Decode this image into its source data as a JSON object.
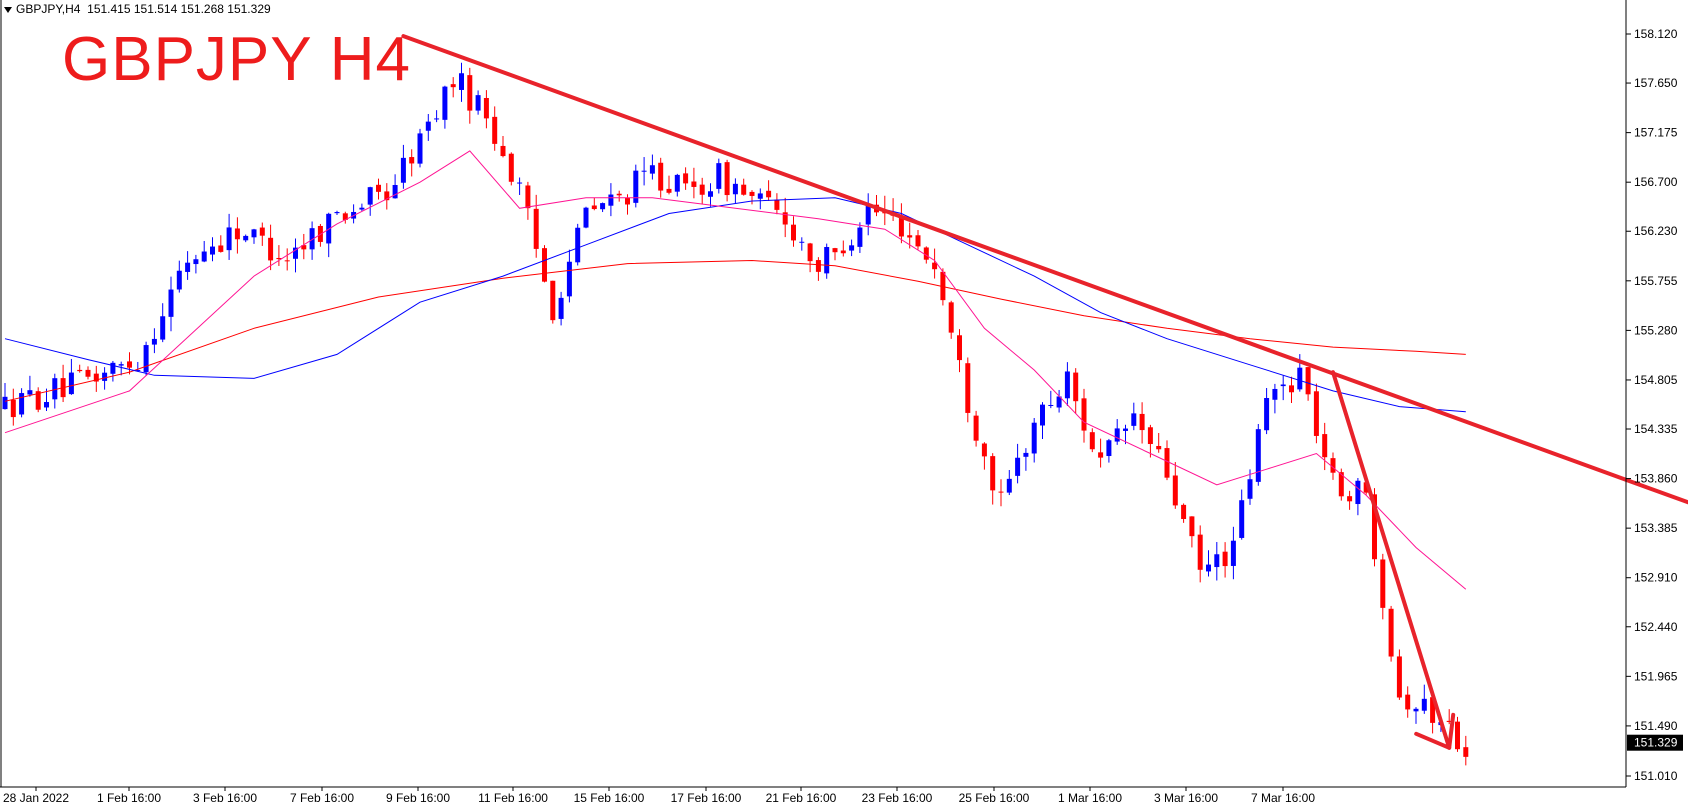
{
  "header": {
    "symbol_info": "GBPJPY,H4",
    "ohlc": "151.415 151.514 151.268 151.329",
    "big_title": "GBPJPY H4"
  },
  "colors": {
    "bull": "#0000ff",
    "bear": "#ff0000",
    "ma_fast": "#ff1493",
    "ma_mid": "#0000ff",
    "ma_slow": "#ff0000",
    "trendline": "#e8232b",
    "price_label_bg": "#000000"
  },
  "chart_data": {
    "type": "candlestick",
    "ylim": [
      150.9,
      158.2
    ],
    "y_ticks": [
      "158.120",
      "157.650",
      "157.175",
      "156.700",
      "156.230",
      "155.755",
      "155.280",
      "154.805",
      "154.335",
      "153.860",
      "153.385",
      "152.910",
      "152.440",
      "151.965",
      "151.490",
      "151.010"
    ],
    "x_ticks": [
      "28 Jan 2022",
      "1 Feb 16:00",
      "3 Feb 16:00",
      "7 Feb 16:00",
      "9 Feb 16:00",
      "11 Feb 16:00",
      "15 Feb 16:00",
      "17 Feb 16:00",
      "21 Feb 16:00",
      "23 Feb 16:00",
      "25 Feb 16:00",
      "1 Mar 16:00",
      "3 Mar 16:00",
      "7 Mar 16:00"
    ],
    "current_price": "151.329",
    "anchors": [
      [
        0,
        154.55
      ],
      [
        8,
        154.75
      ],
      [
        16,
        155.0
      ],
      [
        22,
        155.95
      ],
      [
        28,
        156.25
      ],
      [
        34,
        156.0
      ],
      [
        40,
        156.4
      ],
      [
        46,
        156.6
      ],
      [
        50,
        157.1
      ],
      [
        54,
        157.7
      ],
      [
        58,
        157.35
      ],
      [
        62,
        156.6
      ],
      [
        66,
        155.5
      ],
      [
        70,
        156.4
      ],
      [
        74,
        156.55
      ],
      [
        78,
        156.8
      ],
      [
        82,
        156.6
      ],
      [
        86,
        156.75
      ],
      [
        90,
        156.55
      ],
      [
        94,
        156.35
      ],
      [
        98,
        155.9
      ],
      [
        100,
        156.0
      ],
      [
        104,
        156.45
      ],
      [
        108,
        156.3
      ],
      [
        112,
        155.9
      ],
      [
        116,
        154.6
      ],
      [
        120,
        153.6
      ],
      [
        124,
        154.4
      ],
      [
        128,
        154.8
      ],
      [
        132,
        154.0
      ],
      [
        136,
        154.45
      ],
      [
        140,
        153.9
      ],
      [
        144,
        152.95
      ],
      [
        148,
        153.2
      ],
      [
        152,
        154.6
      ],
      [
        156,
        154.9
      ],
      [
        160,
        153.8
      ],
      [
        164,
        153.7
      ],
      [
        168,
        151.8
      ],
      [
        172,
        151.6
      ],
      [
        176,
        151.33
      ]
    ],
    "ma_fast": [
      [
        0,
        154.3
      ],
      [
        15,
        154.7
      ],
      [
        30,
        155.8
      ],
      [
        40,
        156.3
      ],
      [
        50,
        156.7
      ],
      [
        56,
        157.0
      ],
      [
        62,
        156.45
      ],
      [
        70,
        156.55
      ],
      [
        78,
        156.55
      ],
      [
        88,
        156.45
      ],
      [
        98,
        156.35
      ],
      [
        106,
        156.25
      ],
      [
        112,
        155.95
      ],
      [
        118,
        155.3
      ],
      [
        124,
        154.9
      ],
      [
        130,
        154.4
      ],
      [
        138,
        154.1
      ],
      [
        146,
        153.8
      ],
      [
        152,
        153.95
      ],
      [
        158,
        154.1
      ],
      [
        164,
        153.7
      ],
      [
        170,
        153.2
      ],
      [
        176,
        152.8
      ]
    ],
    "ma_mid": [
      [
        0,
        155.2
      ],
      [
        10,
        155.0
      ],
      [
        18,
        154.85
      ],
      [
        30,
        154.82
      ],
      [
        40,
        155.05
      ],
      [
        50,
        155.55
      ],
      [
        60,
        155.8
      ],
      [
        70,
        156.1
      ],
      [
        80,
        156.4
      ],
      [
        90,
        156.52
      ],
      [
        100,
        156.55
      ],
      [
        108,
        156.4
      ],
      [
        116,
        156.1
      ],
      [
        124,
        155.8
      ],
      [
        132,
        155.45
      ],
      [
        140,
        155.2
      ],
      [
        150,
        154.95
      ],
      [
        160,
        154.7
      ],
      [
        168,
        154.55
      ],
      [
        176,
        154.5
      ]
    ],
    "ma_slow": [
      [
        0,
        154.6
      ],
      [
        15,
        154.88
      ],
      [
        30,
        155.3
      ],
      [
        45,
        155.6
      ],
      [
        60,
        155.78
      ],
      [
        75,
        155.92
      ],
      [
        90,
        155.95
      ],
      [
        100,
        155.9
      ],
      [
        110,
        155.75
      ],
      [
        120,
        155.58
      ],
      [
        130,
        155.42
      ],
      [
        140,
        155.3
      ],
      [
        150,
        155.2
      ],
      [
        160,
        155.12
      ],
      [
        170,
        155.08
      ],
      [
        176,
        155.05
      ]
    ],
    "trendline": [
      [
        48,
        158.1
      ],
      [
        215,
        153.28
      ]
    ],
    "arrow": [
      [
        160,
        154.88
      ],
      [
        174,
        151.28
      ]
    ]
  }
}
